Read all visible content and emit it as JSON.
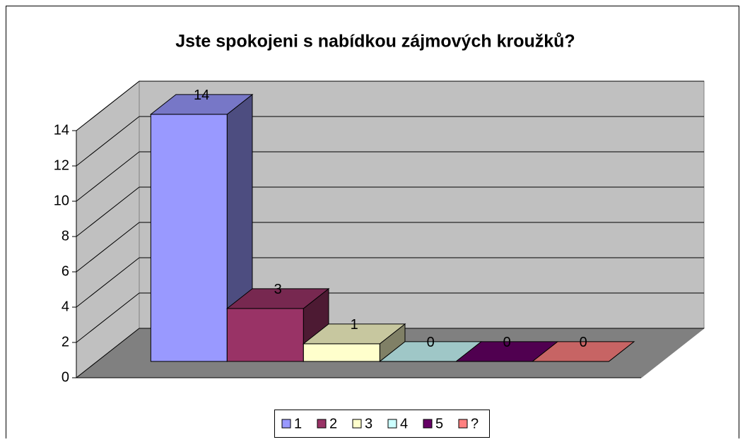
{
  "chart_data": {
    "type": "bar3d",
    "title": "Jste spokojeni s nabídkou zájmových kroužků?",
    "categories": [
      null
    ],
    "series": [
      {
        "name": "1",
        "color": "#9999ff",
        "values": [
          14
        ]
      },
      {
        "name": "2",
        "color": "#993366",
        "values": [
          3
        ]
      },
      {
        "name": "3",
        "color": "#ffffcc",
        "values": [
          1
        ]
      },
      {
        "name": "4",
        "color": "#ccffff",
        "values": [
          0
        ]
      },
      {
        "name": "5",
        "color": "#660066",
        "values": [
          0
        ]
      },
      {
        "name": "?",
        "color": "#ff8080",
        "values": [
          0
        ]
      }
    ],
    "ylim": [
      0,
      14
    ],
    "yticks": [
      0,
      2,
      4,
      6,
      8,
      10,
      12,
      14
    ],
    "grid": true,
    "legend": "bottom"
  }
}
